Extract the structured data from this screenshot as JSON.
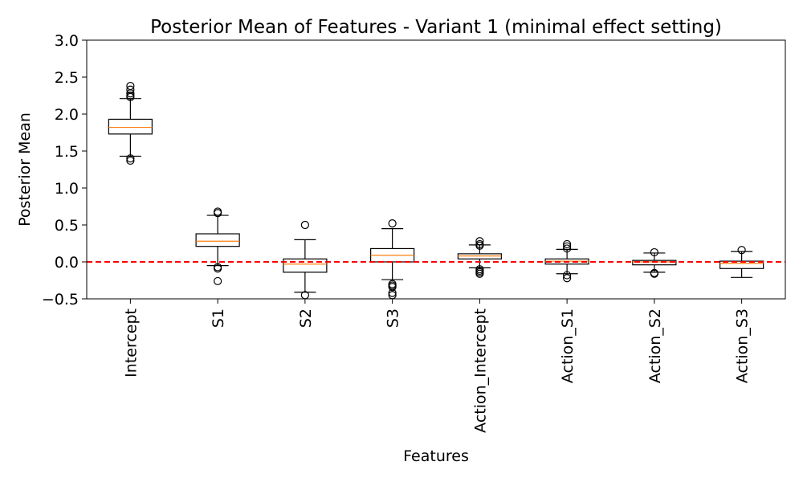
{
  "chart_data": {
    "type": "box",
    "title": "Posterior Mean of Features - Variant 1 (minimal effect setting)",
    "xlabel": "Features",
    "ylabel": "Posterior Mean",
    "ylim": [
      -0.5,
      3.0
    ],
    "yticks": [
      -0.5,
      0.0,
      0.5,
      1.0,
      1.5,
      2.0,
      2.5,
      3.0
    ],
    "ytick_labels": [
      "−0.5",
      "0.0",
      "0.5",
      "1.0",
      "1.5",
      "2.0",
      "2.5",
      "3.0"
    ],
    "reference_line": {
      "y": 0.0,
      "color": "#ff0000",
      "style": "dashed"
    },
    "colors": {
      "box": "#000000",
      "median": "#ff7f0e",
      "reference": "#ff0000"
    },
    "categories": [
      "Intercept",
      "S1",
      "S2",
      "S3",
      "Action_Intercept",
      "Action_S1",
      "Action_S2",
      "Action_S3"
    ],
    "boxes": [
      {
        "name": "Intercept",
        "whisker_low": 1.43,
        "q1": 1.73,
        "median": 1.82,
        "q3": 1.93,
        "whisker_high": 2.21,
        "outliers": [
          2.38,
          2.33,
          2.28,
          2.25,
          2.23,
          1.4,
          1.37
        ]
      },
      {
        "name": "S1",
        "whisker_low": -0.05,
        "q1": 0.21,
        "median": 0.28,
        "q3": 0.38,
        "whisker_high": 0.63,
        "outliers": [
          0.68,
          0.66,
          -0.07,
          -0.09,
          -0.26
        ]
      },
      {
        "name": "S2",
        "whisker_low": -0.41,
        "q1": -0.14,
        "median": -0.03,
        "q3": 0.04,
        "whisker_high": 0.3,
        "outliers": [
          0.5,
          -0.45
        ]
      },
      {
        "name": "S3",
        "whisker_low": -0.24,
        "q1": 0.0,
        "median": 0.09,
        "q3": 0.18,
        "whisker_high": 0.45,
        "outliers": [
          0.52,
          -0.3,
          -0.32,
          -0.34,
          -0.42,
          -0.45
        ]
      },
      {
        "name": "Action_Intercept",
        "whisker_low": -0.08,
        "q1": 0.04,
        "median": 0.08,
        "q3": 0.11,
        "whisker_high": 0.23,
        "outliers": [
          0.28,
          0.24,
          0.22,
          -0.1,
          -0.12,
          -0.14,
          -0.16
        ]
      },
      {
        "name": "Action_S1",
        "whisker_low": -0.16,
        "q1": -0.03,
        "median": 0.01,
        "q3": 0.04,
        "whisker_high": 0.17,
        "outliers": [
          0.24,
          0.21,
          0.18,
          -0.18,
          -0.22
        ]
      },
      {
        "name": "Action_S2",
        "whisker_low": -0.14,
        "q1": -0.04,
        "median": 0.0,
        "q3": 0.02,
        "whisker_high": 0.12,
        "outliers": [
          0.13,
          -0.15,
          -0.16
        ]
      },
      {
        "name": "Action_S3",
        "whisker_low": -0.21,
        "q1": -0.09,
        "median": -0.02,
        "q3": 0.01,
        "whisker_high": 0.14,
        "outliers": [
          0.16
        ]
      }
    ]
  }
}
